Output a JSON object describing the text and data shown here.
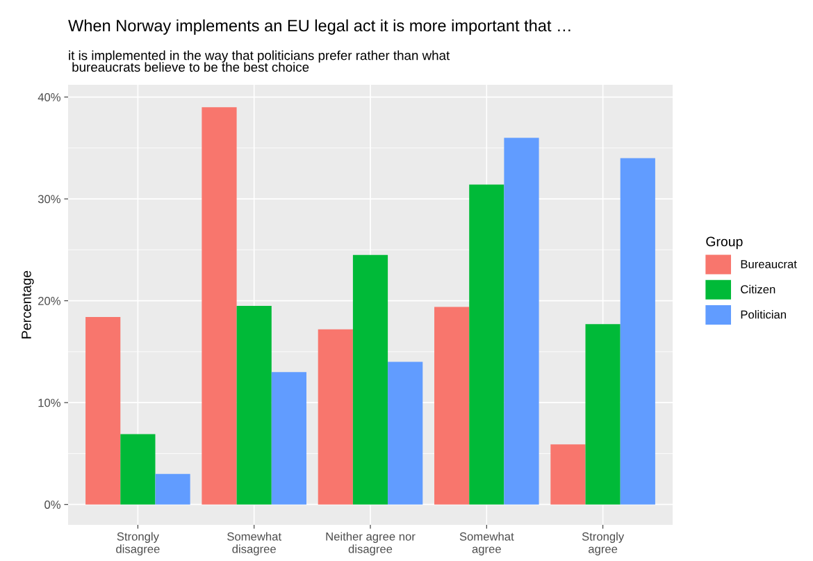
{
  "chart_data": {
    "type": "bar",
    "title": "When Norway implements an EU legal act it is more important that …",
    "subtitle": "it is implemented in the way that politicians prefer rather than what\n bureaucrats believe to be the best choice",
    "ylabel": "Percentage",
    "legend_title": "Group",
    "categories": [
      "Strongly\ndisagree",
      "Somewhat\ndisagree",
      "Neither agree nor\ndisagree",
      "Somewhat\nagree",
      "Strongly\nagree"
    ],
    "series": [
      {
        "name": "Bureaucrat",
        "color": "#f8766d",
        "values": [
          18.4,
          39.0,
          17.2,
          19.4,
          5.9
        ]
      },
      {
        "name": "Citizen",
        "color": "#00ba38",
        "values": [
          6.9,
          19.5,
          24.5,
          31.4,
          17.7
        ]
      },
      {
        "name": "Politician",
        "color": "#619cff",
        "values": [
          3.0,
          13.0,
          14.0,
          36.0,
          34.0
        ]
      }
    ],
    "ylim": [
      -2,
      41.2
    ],
    "yticks": [
      {
        "value": 0,
        "label": "0%"
      },
      {
        "value": 10,
        "label": "10%"
      },
      {
        "value": 20,
        "label": "20%"
      },
      {
        "value": 30,
        "label": "30%"
      },
      {
        "value": 40,
        "label": "40%"
      }
    ],
    "grid": true,
    "legend": "right"
  }
}
